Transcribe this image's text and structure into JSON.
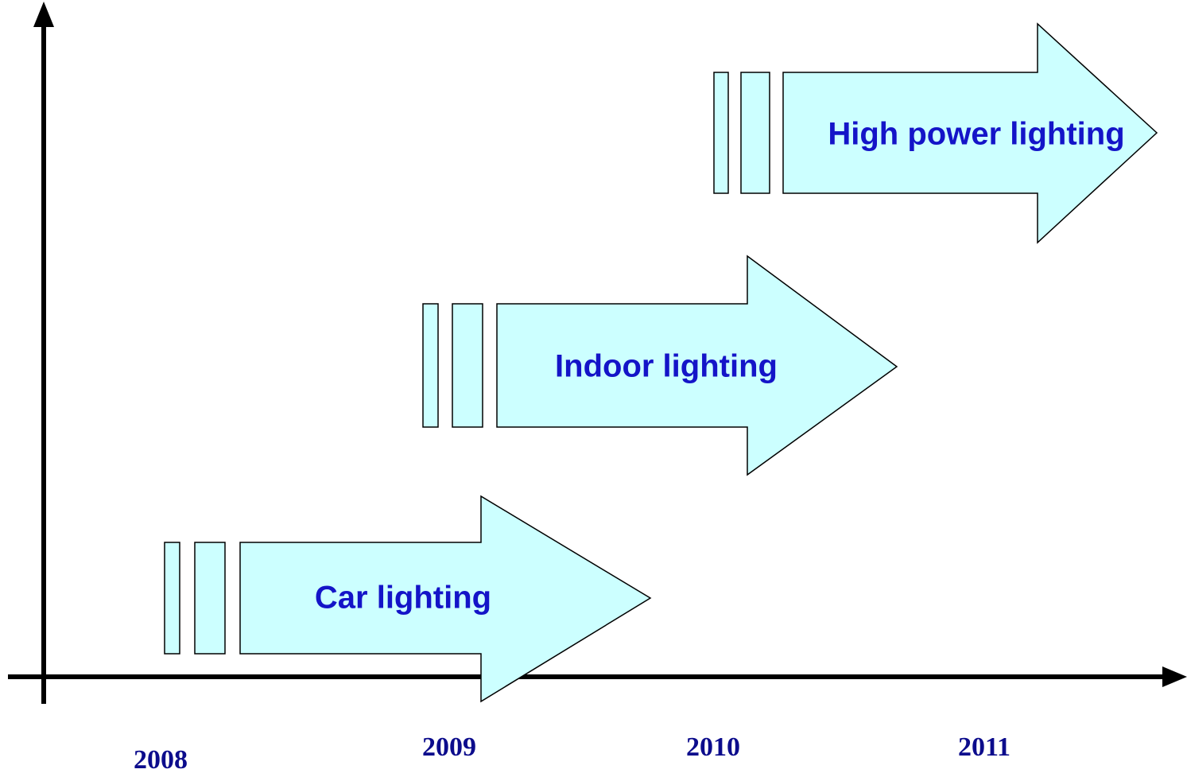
{
  "arrows": [
    {
      "label": "Car lighting"
    },
    {
      "label": "Indoor lighting"
    },
    {
      "label": "High power lighting"
    }
  ],
  "years": [
    "2008",
    "2009",
    "2010",
    "2011"
  ]
}
